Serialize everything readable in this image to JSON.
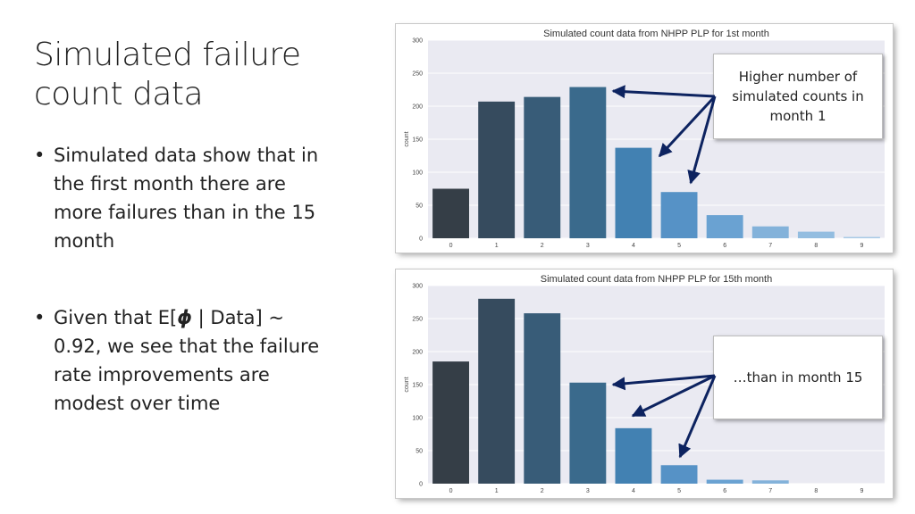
{
  "slide": {
    "title": "Simulated failure count data",
    "bullet1": "Simulated data show that in the first month there are more failures than in the 15 month",
    "bullet2_pre": "Given that E[",
    "bullet2_phi": "ϕ",
    "bullet2_post": " | Data] ~ 0.92, we see that the failure rate improvements are modest over time",
    "callout1": "Higher number of simulated counts in month 1",
    "callout2": "…than in month 15",
    "bullet_symbol": "•"
  },
  "chart_data": [
    {
      "type": "bar",
      "title": "Simulated count data from NHPP PLP for 1st month",
      "xlabel": "",
      "ylabel": "count",
      "categories": [
        "0",
        "1",
        "2",
        "3",
        "4",
        "5",
        "6",
        "7",
        "8",
        "9"
      ],
      "values": [
        75,
        207,
        214,
        229,
        137,
        70,
        35,
        18,
        10,
        2
      ],
      "ylim": [
        0,
        300
      ],
      "yticks": [
        0,
        50,
        100,
        150,
        200,
        250,
        300
      ],
      "grid": true,
      "colors": [
        "#353e47",
        "#364b5e",
        "#385c78",
        "#3a6a8c",
        "#4281b2",
        "#5692c6",
        "#6aa2d2",
        "#83b2da",
        "#93bde0",
        "#a6c9e6"
      ]
    },
    {
      "type": "bar",
      "title": "Simulated count data from NHPP PLP for 15th month",
      "xlabel": "",
      "ylabel": "count",
      "categories": [
        "0",
        "1",
        "2",
        "3",
        "4",
        "5",
        "6",
        "7",
        "8",
        "9"
      ],
      "values": [
        185,
        280,
        258,
        153,
        84,
        28,
        6,
        5,
        0,
        0
      ],
      "ylim": [
        0,
        300
      ],
      "yticks": [
        0,
        50,
        100,
        150,
        200,
        250,
        300
      ],
      "grid": true,
      "colors": [
        "#353e47",
        "#364b5e",
        "#385c78",
        "#3a6a8c",
        "#4281b2",
        "#5692c6",
        "#6aa2d2",
        "#83b2da",
        "#93bde0",
        "#a6c9e6"
      ]
    }
  ]
}
